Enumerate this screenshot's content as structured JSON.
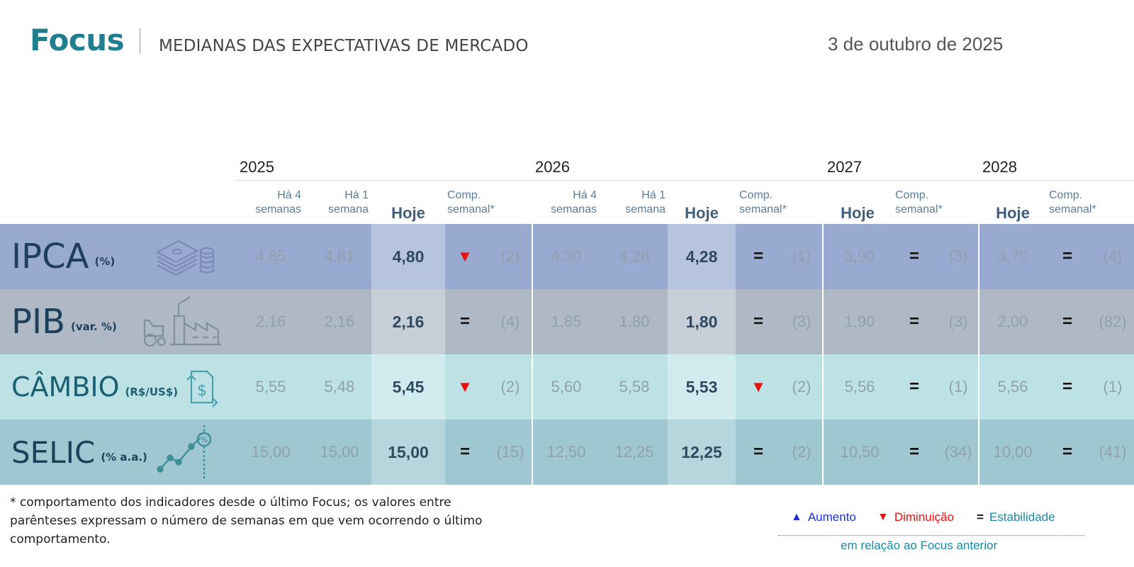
{
  "header": {
    "brand": "Focus",
    "subtitle": "MEDIANAS DAS EXPECTATIVAS DE MERCADO",
    "date": "3 de outubro de 2025"
  },
  "years": [
    "2025",
    "2026",
    "2027",
    "2028"
  ],
  "column_labels": {
    "ha4": [
      "Há 4",
      "semanas"
    ],
    "ha1": [
      "Há 1",
      "semana"
    ],
    "hoje": "Hoje",
    "comp": [
      "Comp.",
      "semanal*"
    ]
  },
  "colors": {
    "brand": "#1f7f8e",
    "down": "#e81010",
    "up": "#1f2fdc",
    "stable": "#1b8aa3"
  },
  "rows": [
    {
      "name": "IPCA",
      "unit": "(%)",
      "icon": "money-stack-icon",
      "y2025": {
        "ha4": "4,85",
        "ha1": "4,81",
        "hoje": "4,80",
        "sym": "▼",
        "weeks": "(2)"
      },
      "y2026": {
        "ha4": "4,30",
        "ha1": "4,28",
        "hoje": "4,28",
        "sym": "=",
        "weeks": "(1)"
      },
      "y2027": {
        "hoje": "3,90",
        "sym": "=",
        "weeks": "(3)"
      },
      "y2028": {
        "hoje": "3,70",
        "sym": "=",
        "weeks": "(4)"
      }
    },
    {
      "name": "PIB",
      "unit": "(var. %)",
      "icon": "factory-tractor-icon",
      "y2025": {
        "ha4": "2,16",
        "ha1": "2,16",
        "hoje": "2,16",
        "sym": "=",
        "weeks": "(4)"
      },
      "y2026": {
        "ha4": "1,85",
        "ha1": "1,80",
        "hoje": "1,80",
        "sym": "=",
        "weeks": "(3)"
      },
      "y2027": {
        "hoje": "1,90",
        "sym": "=",
        "weeks": "(3)"
      },
      "y2028": {
        "hoje": "2,00",
        "sym": "=",
        "weeks": "(82)"
      }
    },
    {
      "name": "CÂMBIO",
      "unit": "(R$/US$)",
      "icon": "currency-exchange-icon",
      "y2025": {
        "ha4": "5,55",
        "ha1": "5,48",
        "hoje": "5,45",
        "sym": "▼",
        "weeks": "(2)"
      },
      "y2026": {
        "ha4": "5,60",
        "ha1": "5,58",
        "hoje": "5,53",
        "sym": "▼",
        "weeks": "(2)"
      },
      "y2027": {
        "hoje": "5,56",
        "sym": "=",
        "weeks": "(1)"
      },
      "y2028": {
        "hoje": "5,56",
        "sym": "=",
        "weeks": "(1)"
      }
    },
    {
      "name": "SELIC",
      "unit": "(% a.a.)",
      "icon": "rate-trend-icon",
      "y2025": {
        "ha4": "15,00",
        "ha1": "15,00",
        "hoje": "15,00",
        "sym": "=",
        "weeks": "(15)"
      },
      "y2026": {
        "ha4": "12,50",
        "ha1": "12,25",
        "hoje": "12,25",
        "sym": "=",
        "weeks": "(2)"
      },
      "y2027": {
        "hoje": "10,50",
        "sym": "=",
        "weeks": "(34)"
      },
      "y2028": {
        "hoje": "10,00",
        "sym": "=",
        "weeks": "(41)"
      }
    }
  ],
  "footnote": "* comportamento dos indicadores desde o último Focus; os valores entre parênteses expressam o número de semanas em que vem ocorrendo o último comportamento.",
  "legend": {
    "up_symbol": "▲",
    "up_label": "Aumento",
    "down_symbol": "▼",
    "down_label": "Diminuição",
    "stable_symbol": "=",
    "stable_label": "Estabilidade",
    "note": "em relação ao Focus anterior"
  }
}
